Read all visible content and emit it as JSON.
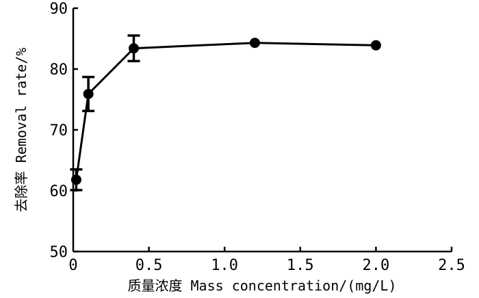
{
  "chart_data": {
    "type": "line",
    "xlabel": "质量浓度 Mass concentration/(mg/L)",
    "ylabel": "去除率 Removal rate/%",
    "xlim": [
      0,
      2.5
    ],
    "ylim": [
      50,
      90
    ],
    "x_ticks": [
      "0",
      "0.5",
      "1.0",
      "1.5",
      "2.0",
      "2.5"
    ],
    "y_ticks": [
      "50",
      "60",
      "70",
      "80",
      "90"
    ],
    "grid": false,
    "series": [
      {
        "x": [
          0.02,
          0.1,
          0.4,
          1.2,
          2.0
        ],
        "y": [
          61.8,
          75.9,
          83.4,
          84.3,
          83.9
        ],
        "error": [
          1.7,
          2.8,
          2.1,
          0,
          0
        ]
      }
    ]
  }
}
